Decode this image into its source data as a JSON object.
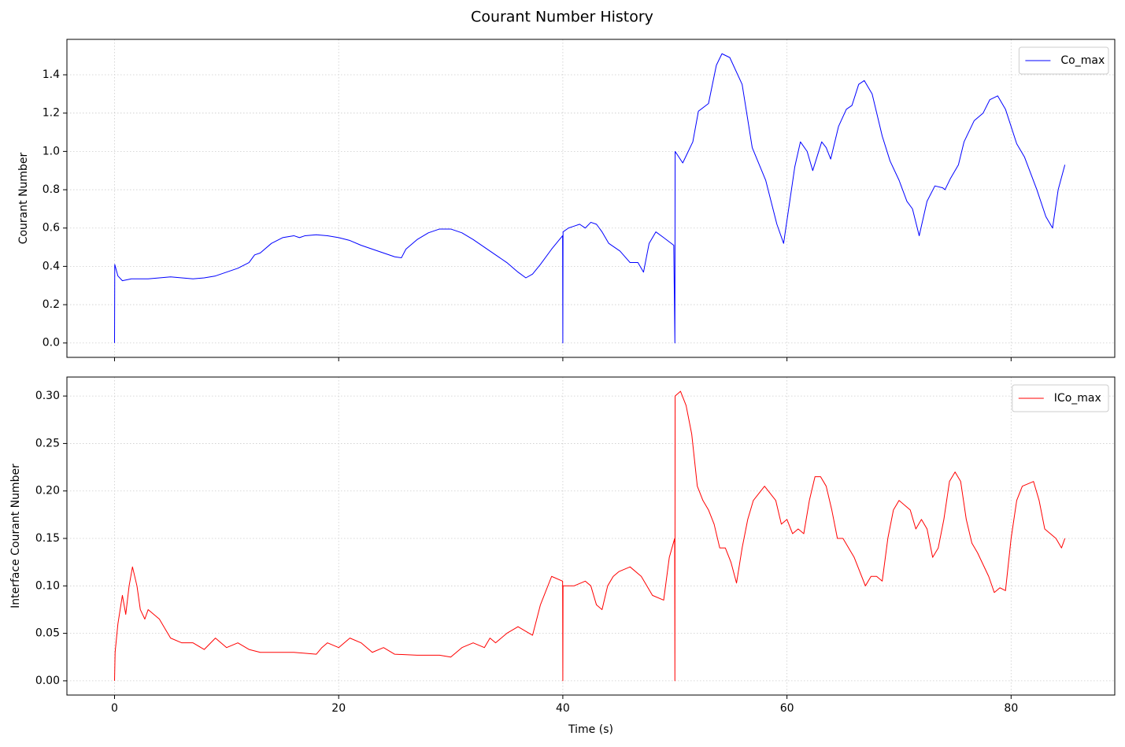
{
  "title": "Courant Number History",
  "chart_data": [
    {
      "type": "line",
      "ylabel": "Courant Number",
      "sharex": true,
      "grid": true,
      "legend": "upper right",
      "xlim": [
        -4.25,
        89.25
      ],
      "ylim": [
        -0.075,
        1.585
      ],
      "xticks": [
        0,
        20,
        40,
        60,
        80
      ],
      "yticks": [
        {
          "value": 0,
          "label": "0.0"
        },
        {
          "value": 0.2,
          "label": "0.2"
        },
        {
          "value": 0.4,
          "label": "0.4"
        },
        {
          "value": 0.6,
          "label": "0.6"
        },
        {
          "value": 0.8,
          "label": "0.8"
        },
        {
          "value": 1.0,
          "label": "1.0"
        },
        {
          "value": 1.2,
          "label": "1.2"
        },
        {
          "value": 1.4,
          "label": "1.4"
        }
      ],
      "x": [
        0,
        0.02,
        0.3,
        0.7,
        1.5,
        3,
        4,
        5,
        6,
        7,
        8,
        9,
        10,
        11,
        12,
        12.5,
        13,
        14,
        15,
        16,
        16.5,
        17,
        18,
        19,
        20,
        21,
        22,
        23,
        24,
        25,
        25.6,
        26,
        27,
        28,
        29,
        30,
        31,
        32,
        33,
        34,
        35,
        36,
        36.7,
        37.3,
        38,
        39,
        39.98,
        40,
        40.02,
        40.5,
        41,
        41.5,
        42,
        42.5,
        43,
        43.5,
        44.1,
        45.1,
        46,
        46.7,
        47.2,
        47.7,
        48.3,
        49,
        49.9,
        50,
        50.02,
        50.7,
        51.6,
        52.1,
        53,
        53.7,
        54.2,
        54.9,
        56,
        56.9,
        58.1,
        59.1,
        59.7,
        60.7,
        61.2,
        61.8,
        62.3,
        63.1,
        63.5,
        63.9,
        64.6,
        65.3,
        65.8,
        66.4,
        66.9,
        67.6,
        68.5,
        69.2,
        70,
        70.7,
        71.2,
        71.8,
        72.5,
        73.2,
        73.9,
        74.1,
        74.6,
        75.3,
        75.8,
        76.7,
        77.5,
        78.1,
        78.8,
        79.5,
        80.5,
        81.2,
        82.3,
        83.1,
        83.7,
        84.2,
        84.8
      ],
      "series": [
        {
          "name": "Co_max",
          "color": "#0000ff",
          "values": [
            0,
            0.41,
            0.35,
            0.325,
            0.335,
            0.335,
            0.34,
            0.345,
            0.34,
            0.335,
            0.34,
            0.35,
            0.37,
            0.39,
            0.42,
            0.46,
            0.47,
            0.52,
            0.55,
            0.56,
            0.55,
            0.56,
            0.565,
            0.56,
            0.55,
            0.535,
            0.51,
            0.49,
            0.47,
            0.45,
            0.445,
            0.49,
            0.54,
            0.575,
            0.595,
            0.595,
            0.575,
            0.54,
            0.5,
            0.46,
            0.42,
            0.37,
            0.34,
            0.36,
            0.41,
            0.49,
            0.56,
            0,
            0.58,
            0.6,
            0.61,
            0.62,
            0.6,
            0.63,
            0.62,
            0.58,
            0.52,
            0.48,
            0.42,
            0.42,
            0.37,
            0.52,
            0.58,
            0.55,
            0.51,
            0,
            1.0,
            0.94,
            1.05,
            1.21,
            1.25,
            1.45,
            1.51,
            1.49,
            1.35,
            1.02,
            0.85,
            0.62,
            0.52,
            0.92,
            1.05,
            1.0,
            0.9,
            1.05,
            1.02,
            0.96,
            1.13,
            1.22,
            1.24,
            1.35,
            1.37,
            1.3,
            1.08,
            0.95,
            0.85,
            0.74,
            0.7,
            0.56,
            0.74,
            0.82,
            0.81,
            0.8,
            0.86,
            0.93,
            1.05,
            1.16,
            1.2,
            1.27,
            1.29,
            1.22,
            1.04,
            0.97,
            0.8,
            0.66,
            0.6,
            0.8,
            0.93
          ]
        }
      ]
    },
    {
      "type": "line",
      "xlabel": "Time (s)",
      "ylabel": "Interface Courant Number",
      "grid": true,
      "legend": "upper right",
      "xlim": [
        -4.25,
        89.25
      ],
      "ylim": [
        -0.015,
        0.32
      ],
      "xticks": [
        0,
        20,
        40,
        60,
        80
      ],
      "yticks": [
        {
          "value": 0,
          "label": "0.00"
        },
        {
          "value": 0.05,
          "label": "0.05"
        },
        {
          "value": 0.1,
          "label": "0.10"
        },
        {
          "value": 0.15,
          "label": "0.15"
        },
        {
          "value": 0.2,
          "label": "0.20"
        },
        {
          "value": 0.25,
          "label": "0.25"
        },
        {
          "value": 0.3,
          "label": "0.30"
        }
      ],
      "x": [
        0,
        0.05,
        0.3,
        0.7,
        1,
        1.3,
        1.6,
        2,
        2.3,
        2.7,
        3,
        3.5,
        4,
        4.5,
        5,
        6,
        7,
        8,
        9,
        10,
        11,
        12,
        13,
        14,
        16,
        18,
        18.5,
        19,
        20,
        21,
        22,
        23,
        24,
        25,
        27,
        29,
        30,
        31,
        32,
        33,
        33.5,
        34,
        35,
        36,
        37,
        37.3,
        38,
        39,
        39.98,
        40,
        40.02,
        41,
        42,
        42.5,
        43,
        43.5,
        44,
        44.5,
        45,
        46,
        47,
        48,
        49,
        49.5,
        49.98,
        50,
        50.02,
        50.5,
        51,
        51.5,
        52,
        52.5,
        53,
        53.5,
        54,
        54.5,
        55,
        55.5,
        56,
        56.5,
        57,
        58,
        59,
        59.5,
        60,
        60.5,
        61,
        61.5,
        62,
        62.5,
        63,
        63.5,
        64,
        64.5,
        65,
        66,
        67,
        67.5,
        68,
        68.5,
        69,
        69.5,
        70,
        71,
        71.5,
        72,
        72.5,
        73,
        73.5,
        74,
        74.5,
        75,
        75.5,
        76,
        76.5,
        77,
        78,
        78.5,
        79,
        79.5,
        80,
        80.5,
        81,
        82,
        82.5,
        83,
        83.5,
        84,
        84.5,
        84.8
      ],
      "series": [
        {
          "name": "ICo_max",
          "color": "#ff0000",
          "values": [
            0,
            0.03,
            0.06,
            0.09,
            0.07,
            0.1,
            0.12,
            0.1,
            0.075,
            0.065,
            0.075,
            0.07,
            0.065,
            0.055,
            0.045,
            0.04,
            0.04,
            0.033,
            0.045,
            0.035,
            0.04,
            0.033,
            0.03,
            0.03,
            0.03,
            0.028,
            0.035,
            0.04,
            0.035,
            0.045,
            0.04,
            0.03,
            0.035,
            0.028,
            0.027,
            0.027,
            0.025,
            0.035,
            0.04,
            0.035,
            0.045,
            0.04,
            0.05,
            0.057,
            0.05,
            0.048,
            0.08,
            0.11,
            0.105,
            0,
            0.1,
            0.1,
            0.105,
            0.1,
            0.08,
            0.075,
            0.1,
            0.11,
            0.115,
            0.12,
            0.11,
            0.09,
            0.085,
            0.13,
            0.15,
            0,
            0.3,
            0.305,
            0.29,
            0.26,
            0.205,
            0.19,
            0.18,
            0.165,
            0.14,
            0.14,
            0.125,
            0.103,
            0.14,
            0.17,
            0.19,
            0.205,
            0.19,
            0.165,
            0.17,
            0.155,
            0.16,
            0.155,
            0.19,
            0.215,
            0.215,
            0.205,
            0.18,
            0.15,
            0.15,
            0.13,
            0.1,
            0.11,
            0.11,
            0.105,
            0.15,
            0.18,
            0.19,
            0.18,
            0.16,
            0.17,
            0.16,
            0.13,
            0.14,
            0.17,
            0.21,
            0.22,
            0.21,
            0.17,
            0.145,
            0.135,
            0.11,
            0.093,
            0.098,
            0.095,
            0.15,
            0.19,
            0.205,
            0.21,
            0.19,
            0.16,
            0.155,
            0.15,
            0.14,
            0.15
          ]
        }
      ]
    }
  ]
}
